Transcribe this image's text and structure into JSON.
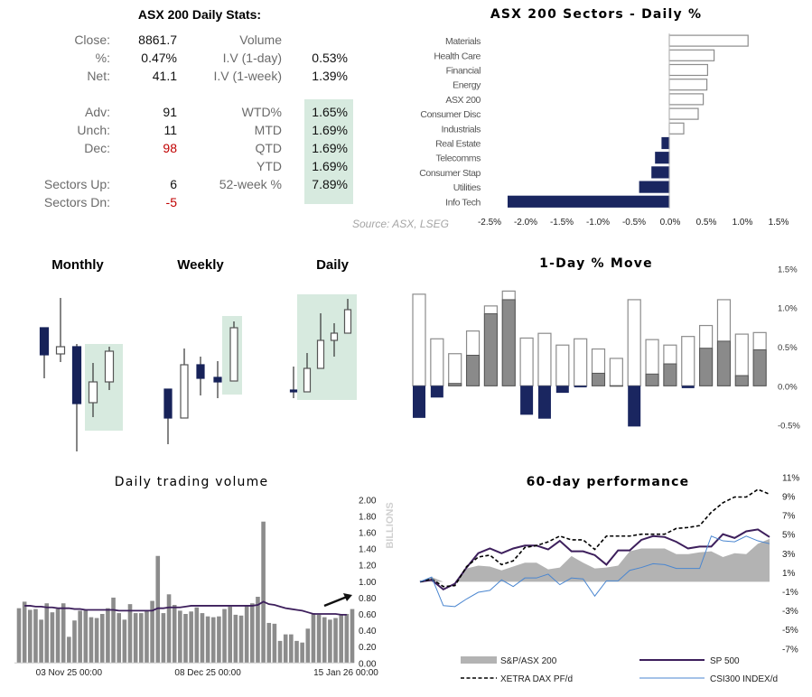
{
  "stats": {
    "title": "ASX 200 Daily Stats:",
    "left": [
      {
        "label": "Close:",
        "value": "8861.7"
      },
      {
        "label": "%:",
        "value": "0.47%"
      },
      {
        "label": "Net:",
        "value": "41.1"
      },
      {
        "label": "Adv:",
        "value": "91"
      },
      {
        "label": "Unch:",
        "value": "11"
      },
      {
        "label": "Dec:",
        "value": "98",
        "color": "#c00000"
      },
      {
        "label": "Sectors Up:",
        "value": "6"
      },
      {
        "label": "Sectors Dn:",
        "value": "-5",
        "color": "#c00000"
      }
    ],
    "right": [
      {
        "label": "Volume",
        "value": ""
      },
      {
        "label": "I.V (1-day)",
        "value": "0.53%"
      },
      {
        "label": "I.V (1-week)",
        "value": "1.39%"
      },
      {
        "label": "WTD%",
        "value": "1.65%"
      },
      {
        "label": "MTD",
        "value": "1.69%"
      },
      {
        "label": "QTD",
        "value": "1.69%"
      },
      {
        "label": "YTD",
        "value": "1.69%"
      },
      {
        "label": "52-week %",
        "value": "7.89%"
      }
    ],
    "highlight_color": "#d7eadf",
    "source": "Source: ASX, LSEG"
  },
  "chart_data": [
    {
      "id": "sectors",
      "type": "bar",
      "orientation": "horizontal",
      "title": "ASX 200 Sectors - Daily %",
      "categories": [
        "Materials",
        "Health Care",
        "Financial",
        "Energy",
        "ASX 200",
        "Consumer Disc",
        "Industrials",
        "Real Estate",
        "Telecomms",
        "Consumer Stap",
        "Utilities",
        "Info Tech"
      ],
      "values": [
        1.09,
        0.62,
        0.53,
        0.52,
        0.47,
        0.4,
        0.2,
        -0.1,
        -0.19,
        -0.24,
        -0.41,
        -2.23
      ],
      "xlim": [
        -2.5,
        1.5
      ],
      "xticks": [
        "-2.5%",
        "-2.0%",
        "-1.5%",
        "-1.0%",
        "-0.5%",
        "0.0%",
        "0.5%",
        "1.0%",
        "1.5%"
      ],
      "colors": {
        "positive": "#ffffff",
        "negative": "#1a2660"
      }
    },
    {
      "id": "candles",
      "type": "candlestick",
      "panels": [
        {
          "title": "Monthly",
          "candles": [
            {
              "o": 137,
              "h": 137,
              "l": 81,
              "c": 107
            },
            {
              "o": 108,
              "h": 170,
              "l": 99,
              "c": 116
            },
            {
              "o": 116,
              "h": 119,
              "l": 0,
              "c": 53
            },
            {
              "o": 54,
              "h": 98,
              "l": 38,
              "c": 77,
              "highlight": true
            },
            {
              "o": 77,
              "h": 116,
              "l": 68,
              "c": 111,
              "highlight": true
            }
          ]
        },
        {
          "title": "Weekly",
          "candles": [
            {
              "o": 69,
              "h": 69,
              "l": 8,
              "c": 37
            },
            {
              "o": 37,
              "h": 114,
              "l": 37,
              "c": 96
            },
            {
              "o": 96,
              "h": 105,
              "l": 62,
              "c": 81
            },
            {
              "o": 82,
              "h": 100,
              "l": 59,
              "c": 77
            },
            {
              "o": 78,
              "h": 144,
              "l": 78,
              "c": 137,
              "highlight": true
            }
          ]
        },
        {
          "title": "Daily",
          "candles": [
            {
              "o": 68,
              "h": 94,
              "l": 59,
              "c": 66
            },
            {
              "o": 66,
              "h": 109,
              "l": 66,
              "c": 92,
              "highlight": true
            },
            {
              "o": 92,
              "h": 153,
              "l": 92,
              "c": 123,
              "highlight": true
            },
            {
              "o": 123,
              "h": 142,
              "l": 105,
              "c": 131,
              "highlight": true
            },
            {
              "o": 131,
              "h": 169,
              "l": 131,
              "c": 157,
              "highlight": true
            }
          ]
        }
      ],
      "colors": {
        "down": "#172259",
        "up": "#ffffff",
        "highlight": "#d7eadf"
      }
    },
    {
      "id": "oneday",
      "type": "bar",
      "title": "1-Day % Move",
      "high": [
        1.17,
        0.6,
        0.41,
        0.7,
        1.02,
        1.21,
        0.61,
        0.67,
        0.52,
        0.6,
        0.47,
        0.35,
        1.1,
        0.59,
        0.52,
        0.63,
        0.77,
        1.1,
        0.66,
        0.68
      ],
      "values": [
        -0.41,
        -0.15,
        0.03,
        0.39,
        0.92,
        1.1,
        -0.37,
        -0.42,
        -0.09,
        -0.02,
        0.16,
        0.0,
        -0.52,
        0.15,
        0.28,
        -0.03,
        0.48,
        0.57,
        0.13,
        0.46
      ],
      "ylim": [
        -0.5,
        1.5
      ],
      "yticks": [
        "1.5%",
        "1.0%",
        "0.5%",
        "0.0%",
        "-0.5%"
      ],
      "colors": {
        "positive": "#8a8a8a",
        "negative": "#1a2660",
        "range": "#ffffff"
      }
    },
    {
      "id": "volume",
      "type": "bar",
      "title": "Daily trading volume",
      "ylabel": "BILLIONS",
      "values": [
        0.67,
        0.75,
        0.65,
        0.66,
        0.53,
        0.73,
        0.62,
        0.66,
        0.73,
        0.32,
        0.52,
        0.64,
        0.65,
        0.56,
        0.55,
        0.6,
        0.67,
        0.8,
        0.61,
        0.53,
        0.72,
        0.61,
        0.61,
        0.64,
        0.76,
        1.31,
        0.61,
        0.84,
        0.71,
        0.64,
        0.6,
        0.63,
        0.68,
        0.61,
        0.57,
        0.56,
        0.57,
        0.66,
        0.69,
        0.59,
        0.58,
        0.7,
        0.73,
        0.81,
        1.73,
        0.49,
        0.48,
        0.27,
        0.35,
        0.35,
        0.27,
        0.25,
        0.42,
        0.61,
        0.59,
        0.56,
        0.53,
        0.55,
        0.6,
        0.6,
        0.66
      ],
      "moving_average": [
        null,
        0.7,
        0.7,
        0.69,
        0.69,
        0.68,
        0.68,
        0.67,
        0.67,
        0.67,
        0.66,
        0.66,
        0.65,
        0.65,
        0.65,
        0.65,
        0.65,
        0.65,
        0.64,
        0.64,
        0.64,
        0.64,
        0.64,
        0.64,
        0.64,
        0.67,
        0.67,
        0.68,
        0.68,
        0.68,
        0.69,
        0.7,
        0.7,
        0.7,
        0.7,
        0.7,
        0.7,
        0.7,
        0.7,
        0.7,
        0.7,
        0.7,
        0.7,
        0.71,
        0.75,
        0.72,
        0.71,
        0.69,
        0.67,
        0.66,
        0.65,
        0.64,
        0.62,
        0.6,
        0.6,
        0.6,
        0.6,
        0.6,
        0.59,
        0.59,
        null
      ],
      "ylim": [
        0,
        2
      ],
      "yticks": [
        "2.00",
        "1.80",
        "1.60",
        "1.40",
        "1.20",
        "1.00",
        "0.80",
        "0.60",
        "0.40",
        "0.20",
        "0.00"
      ],
      "xticks": [
        {
          "label": "03 Nov 25 00:00",
          "index": 9
        },
        {
          "label": "08 Dec 25 00:00",
          "index": 34
        },
        {
          "label": "15 Jan 26 00:00",
          "index": 60
        }
      ],
      "colors": {
        "bar": "#8c8c8c",
        "ma": "#3d1f5c"
      }
    },
    {
      "id": "perf60",
      "type": "line",
      "title": "60-day performance",
      "ylim": [
        -7,
        11
      ],
      "yticks": [
        "11%",
        "9%",
        "7%",
        "5%",
        "3%",
        "1%",
        "-1%",
        "-3%",
        "-5%",
        "-7%"
      ],
      "series": [
        {
          "name": "S&P/ASX 200",
          "style": "area",
          "color": "#b3b3b3",
          "values": [
            0,
            0.5,
            0,
            0,
            1.4,
            1.7,
            1.6,
            1.2,
            1.6,
            2.0,
            2.0,
            1.3,
            1.5,
            2.7,
            2.0,
            1.4,
            1.5,
            1.7,
            3.2,
            3.5,
            3.5,
            3.5,
            2.9,
            2.9,
            3.1,
            3.2,
            2.6,
            3.0,
            2.9,
            4.0,
            4.5
          ]
        },
        {
          "name": "SP 500",
          "style": "line",
          "color": "#3d1f5c",
          "values": [
            0,
            0.2,
            -0.8,
            -0.2,
            1.5,
            3.0,
            3.5,
            3.0,
            3.5,
            3.8,
            3.8,
            3.4,
            4.3,
            3.2,
            3.2,
            2.8,
            1.8,
            3.3,
            3.3,
            4.4,
            4.8,
            4.7,
            4.2,
            3.5,
            3.7,
            3.7,
            5.0,
            4.6,
            5.3,
            5.5,
            4.7
          ]
        },
        {
          "name": "XETRA DAX PF/d",
          "style": "dashed",
          "color": "#000000",
          "values": [
            0,
            0.3,
            -0.5,
            -0.4,
            1.6,
            2.6,
            2.8,
            1.8,
            2.2,
            3.6,
            3.8,
            4.2,
            4.8,
            4.4,
            4.4,
            3.4,
            4.8,
            4.8,
            4.8,
            5.0,
            5.0,
            5.0,
            5.6,
            5.7,
            5.9,
            7.3,
            8.3,
            8.9,
            8.9,
            9.7,
            9.2
          ]
        },
        {
          "name": "CSI300 INDEX/d",
          "style": "thin",
          "color": "#4a86d0",
          "values": [
            0,
            0.5,
            -2.5,
            -2.6,
            -1.8,
            -1.1,
            -0.9,
            0.2,
            -0.5,
            0.4,
            0.4,
            0.8,
            -0.3,
            0.4,
            0.3,
            -1.5,
            0.1,
            0.1,
            1.2,
            1.5,
            1.9,
            1.8,
            1.4,
            1.4,
            1.4,
            4.8,
            4.3,
            4.2,
            4.8,
            4.3,
            4.0
          ]
        }
      ]
    }
  ]
}
